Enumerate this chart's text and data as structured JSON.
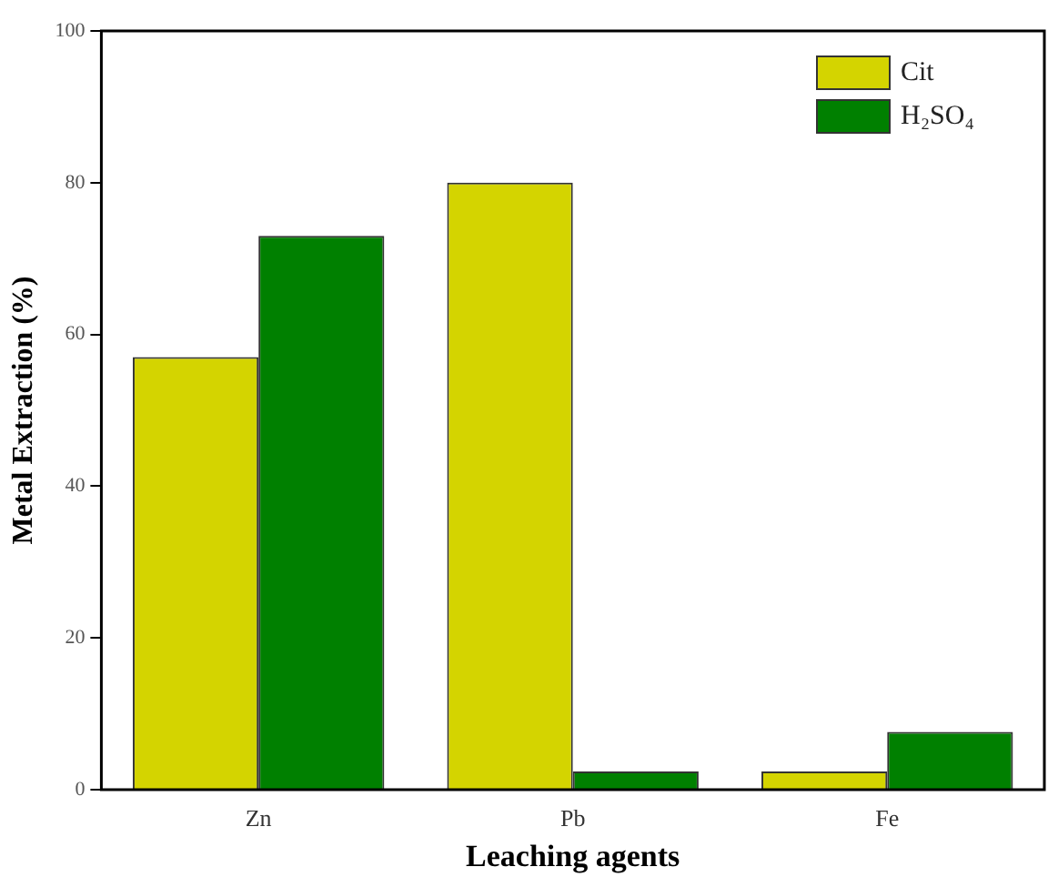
{
  "chart_data": {
    "type": "bar",
    "xlabel": "Leaching agents",
    "ylabel": "Metal Extraction (%)",
    "categories": [
      "Zn",
      "Pb",
      "Fe"
    ],
    "series": [
      {
        "name": "Cit",
        "color": "#d4d400",
        "values": [
          57,
          80,
          2.4
        ]
      },
      {
        "name": "H₂SO₄",
        "color": "#008000",
        "values": [
          73,
          2.4,
          7.6
        ]
      }
    ],
    "ylim": [
      0,
      100
    ],
    "yticks": [
      0,
      20,
      40,
      60,
      80,
      100
    ],
    "grid": false,
    "legend": "top right"
  }
}
